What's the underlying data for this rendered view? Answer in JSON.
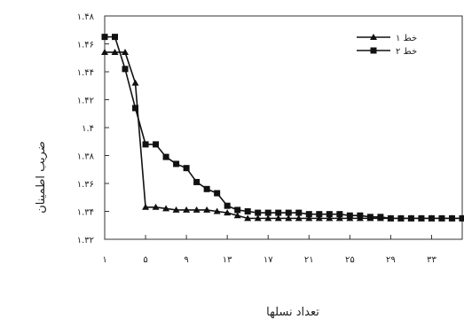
{
  "chart_data": {
    "type": "line",
    "xlabel": "تعداد نسلها",
    "ylabel": "ضریب اطمینان",
    "x_ticks": [
      "۱",
      "۵",
      "۹",
      "۱۳",
      "۱۷",
      "۲۱",
      "۲۵",
      "۲۹",
      "۳۳"
    ],
    "y_ticks": [
      "۱.۳۲",
      "۱.۳۴",
      "۱.۳۶",
      "۱.۳۸",
      "۱.۴",
      "۱.۴۲",
      "۱.۴۴",
      "۱.۴۶",
      "۱.۴۸"
    ],
    "xlim": [
      1,
      36
    ],
    "ylim": [
      1.32,
      1.48
    ],
    "grid": false,
    "legend_position": "top-right",
    "series": [
      {
        "name": "خط ۱",
        "marker": "triangle",
        "x": [
          1,
          2,
          3,
          4,
          5,
          6,
          7,
          8,
          9,
          10,
          11,
          12,
          13,
          14,
          15,
          16,
          17,
          18,
          19,
          20,
          21,
          22,
          23,
          24,
          25,
          26,
          27,
          28,
          29,
          30,
          31,
          32,
          33,
          34,
          35,
          36
        ],
        "y": [
          1.454,
          1.454,
          1.454,
          1.432,
          1.343,
          1.343,
          1.342,
          1.341,
          1.341,
          1.341,
          1.341,
          1.34,
          1.339,
          1.337,
          1.335,
          1.335,
          1.335,
          1.335,
          1.335,
          1.335,
          1.335,
          1.335,
          1.335,
          1.335,
          1.335,
          1.335,
          1.335,
          1.335,
          1.335,
          1.335,
          1.335,
          1.335,
          1.335,
          1.335,
          1.335,
          1.335
        ]
      },
      {
        "name": "خط ۲",
        "marker": "square",
        "x": [
          1,
          2,
          3,
          4,
          5,
          6,
          7,
          8,
          9,
          10,
          11,
          12,
          13,
          14,
          15,
          16,
          17,
          18,
          19,
          20,
          21,
          22,
          23,
          24,
          25,
          26,
          27,
          28,
          29,
          30,
          31,
          32,
          33,
          34,
          35,
          36
        ],
        "y": [
          1.465,
          1.465,
          1.442,
          1.414,
          1.388,
          1.388,
          1.379,
          1.374,
          1.371,
          1.361,
          1.356,
          1.353,
          1.344,
          1.341,
          1.34,
          1.339,
          1.339,
          1.339,
          1.339,
          1.339,
          1.338,
          1.338,
          1.338,
          1.338,
          1.337,
          1.337,
          1.336,
          1.336,
          1.335,
          1.335,
          1.335,
          1.335,
          1.335,
          1.335,
          1.335,
          1.335
        ]
      }
    ]
  }
}
